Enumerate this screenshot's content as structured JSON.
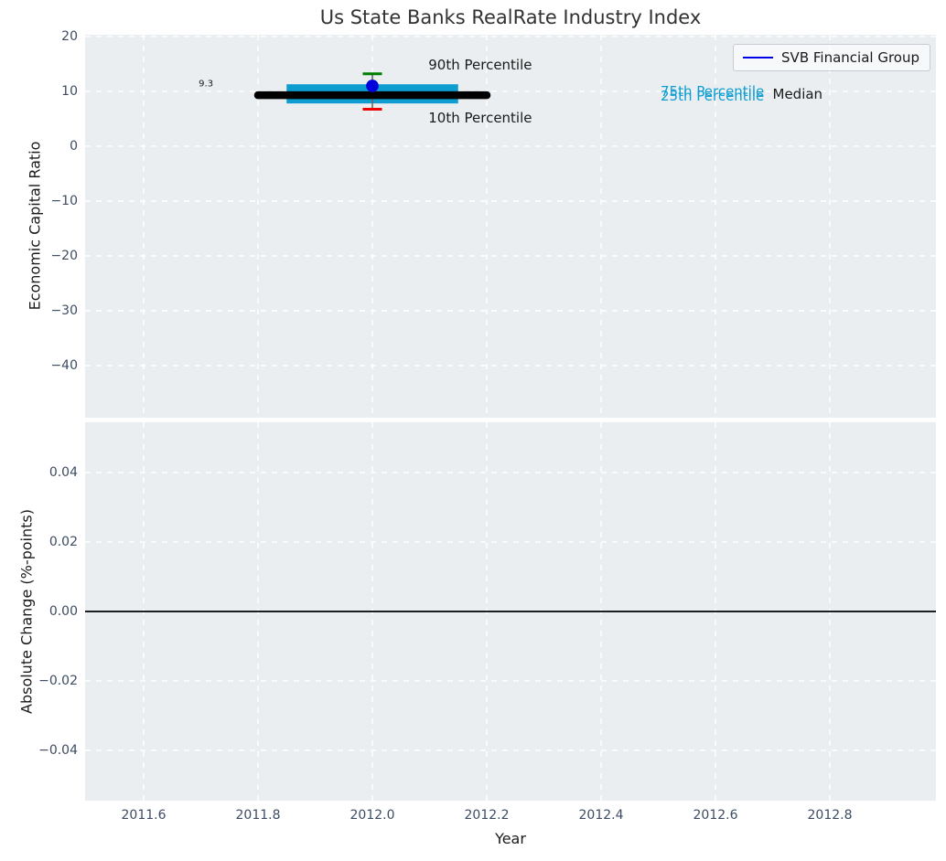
{
  "chart_data": [
    {
      "id": "economic-capital-ratio-panel",
      "type": "line",
      "title": "Us State Banks RealRate Industry Index",
      "ylabel": "Economic Capital Ratio",
      "xlim": [
        2011.4976,
        2012.9856
      ],
      "ylim": [
        -49.5,
        20.33
      ],
      "grid": true,
      "legend": {
        "position": "upper right",
        "entries": [
          {
            "label": "SVB Financial Group",
            "color": "#0000e6"
          }
        ]
      },
      "yticks": [
        {
          "label": "20",
          "value": 20
        },
        {
          "label": "10",
          "value": 10
        },
        {
          "label": "0",
          "value": 0
        },
        {
          "label": "−10",
          "value": -10
        },
        {
          "label": "−20",
          "value": -20
        },
        {
          "label": "−30",
          "value": -30
        },
        {
          "label": "−40",
          "value": -40
        }
      ],
      "xgrid": [
        2011.6,
        2011.8,
        2012.0,
        2012.2,
        2012.4,
        2012.6,
        2012.8
      ],
      "series": [
        {
          "name": "SVB Financial Group",
          "marker": "circle",
          "color": "#0000dd",
          "points": [
            {
              "x": 2012.0,
              "y": 11.0
            }
          ]
        }
      ],
      "industry_summary": {
        "median": {
          "value": 9.3,
          "x_from": 2011.8,
          "x_to": 2012.2,
          "color": "#000000"
        },
        "iqr_band": {
          "low": 7.8,
          "high": 11.3,
          "x_from": 2011.85,
          "x_to": 2012.15,
          "color": "#0d9dd1"
        },
        "p90": {
          "value": 13.2,
          "cap_color": "#007d00"
        },
        "p10": {
          "value": 6.75,
          "cap_color": "#f00000"
        },
        "whisker_x": 2012.0,
        "whisker_color": "#666666"
      },
      "annotations": [
        {
          "text": "90th Percentile",
          "x": 2012.098,
          "y": 14.8,
          "ha": "left",
          "color": "#1a1a1a",
          "size": 15
        },
        {
          "text": "10th Percentile",
          "x": 2012.098,
          "y": 5.2,
          "ha": "left",
          "color": "#1a1a1a",
          "size": 15
        },
        {
          "text": "9.3",
          "x": 2011.709,
          "y": 11.25,
          "ha": "center",
          "color": "#1a1a1a",
          "size": 10
        },
        {
          "text": "75th Percentile",
          "x": 2012.504,
          "y": 10.0,
          "ha": "left",
          "color": "#0d9dd1",
          "size": 15
        },
        {
          "text": "25th Percentile",
          "x": 2012.504,
          "y": 9.2,
          "ha": "left",
          "color": "#0d9dd1",
          "size": 15
        },
        {
          "text": "Median",
          "x": 2012.7,
          "y": 9.5,
          "ha": "left",
          "color": "#1a1a1a",
          "size": 15
        }
      ]
    },
    {
      "id": "absolute-change-panel",
      "type": "line",
      "ylabel": "Absolute Change (%-points)",
      "xlabel": "Year",
      "xlim": [
        2011.4976,
        2012.9856
      ],
      "ylim": [
        -0.0545,
        0.0545
      ],
      "grid": true,
      "yticks": [
        {
          "label": "0.04",
          "value": 0.04
        },
        {
          "label": "0.02",
          "value": 0.02
        },
        {
          "label": "0.00",
          "value": 0.0
        },
        {
          "label": "−0.02",
          "value": -0.02
        },
        {
          "label": "−0.04",
          "value": -0.04
        }
      ],
      "xticks": [
        {
          "label": "2011.6",
          "value": 2011.6
        },
        {
          "label": "2011.8",
          "value": 2011.8
        },
        {
          "label": "2012.0",
          "value": 2012.0
        },
        {
          "label": "2012.2",
          "value": 2012.2
        },
        {
          "label": "2012.4",
          "value": 2012.4
        },
        {
          "label": "2012.6",
          "value": 2012.6
        },
        {
          "label": "2012.8",
          "value": 2012.8
        }
      ],
      "zero_line": {
        "value": 0.0,
        "color": "#000000"
      }
    }
  ]
}
